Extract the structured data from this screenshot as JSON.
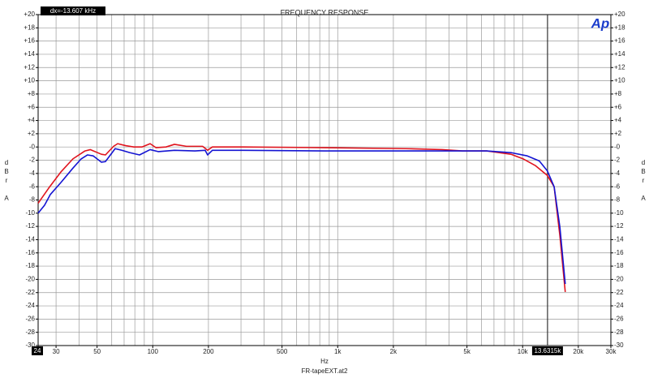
{
  "chart_data": {
    "type": "line",
    "title": "FREQUENCY RESPONSE",
    "readout": "dx=-13.607 kHz",
    "logo": "Ap",
    "xlabel": "Hz",
    "footer": "FR-tapeEXT.at2",
    "ylabel": "dBr A",
    "xscale": "log",
    "grid": true,
    "xlim": [
      24,
      30000
    ],
    "ylim": [
      -30,
      20
    ],
    "xticks": [
      24,
      30,
      50,
      100,
      200,
      500,
      {
        "value": 1000,
        "label": "1k"
      },
      {
        "value": 2000,
        "label": "2k"
      },
      {
        "value": 5000,
        "label": "5k"
      },
      {
        "value": 10000,
        "label": "10k"
      },
      {
        "value": 20000,
        "label": "20k"
      },
      {
        "value": 30000,
        "label": "30k"
      }
    ],
    "xminor_ticks": [
      40,
      60,
      70,
      80,
      90,
      300,
      400,
      600,
      700,
      800,
      900,
      3000,
      4000,
      6000,
      7000,
      8000,
      9000
    ],
    "yticks": [
      {
        "value": 20,
        "label": "+20"
      },
      {
        "value": 18,
        "label": "+18"
      },
      {
        "value": 16,
        "label": "+16"
      },
      {
        "value": 14,
        "label": "+14"
      },
      {
        "value": 12,
        "label": "+12"
      },
      {
        "value": 10,
        "label": "+10"
      },
      {
        "value": 8,
        "label": "+8"
      },
      {
        "value": 6,
        "label": "+6"
      },
      {
        "value": 4,
        "label": "+4"
      },
      {
        "value": 2,
        "label": "+2"
      },
      {
        "value": 0,
        "label": "-0"
      },
      -2,
      -4,
      -6,
      -8,
      -10,
      -12,
      -14,
      -16,
      -18,
      -20,
      -22,
      -24,
      -26,
      -28,
      -30
    ],
    "cursor": {
      "value": 13631.5,
      "label": "13.6315k"
    },
    "series": [
      {
        "color": "#e0141e",
        "x": [
          24,
          27.4,
          31.8,
          37,
          43,
          46,
          52.8,
          55.5,
          61.4,
          64.6,
          71.4,
          79,
          87.4,
          96.8,
          104,
          118,
          131,
          152,
          186,
          198,
          210,
          309,
          848,
          2330,
          3670,
          4720,
          6390,
          8650,
          10080,
          11700,
          13600,
          14800,
          15900,
          17000
        ],
        "values": [
          -8.5,
          -6.2,
          -3.8,
          -1.8,
          -0.6,
          -0.4,
          -1.1,
          -1.2,
          0.1,
          0.5,
          0.2,
          0,
          0,
          0.5,
          -0.1,
          0,
          0.4,
          0.1,
          0.1,
          -0.5,
          0,
          0,
          -0.1,
          -0.25,
          -0.4,
          -0.6,
          -0.6,
          -1.1,
          -1.8,
          -2.8,
          -4.3,
          -6.0,
          -13.4,
          -21.9
        ]
      },
      {
        "color": "#1414d2",
        "x": [
          24,
          26,
          27.9,
          31.8,
          37,
          41,
          44.4,
          47.7,
          52.8,
          55.5,
          62.6,
          68,
          75,
          84.8,
          96.8,
          107,
          131,
          169,
          192,
          198,
          210,
          309,
          848,
          2330,
          4270,
          6390,
          8650,
          10600,
          12300,
          13600,
          14800,
          15900,
          17000
        ],
        "values": [
          -10.0,
          -8.8,
          -7.2,
          -5.4,
          -3.2,
          -1.8,
          -1.2,
          -1.35,
          -2.3,
          -2.2,
          -0.25,
          -0.5,
          -0.85,
          -1.2,
          -0.4,
          -0.7,
          -0.5,
          -0.6,
          -0.5,
          -1.2,
          -0.5,
          -0.5,
          -0.6,
          -0.6,
          -0.6,
          -0.6,
          -0.85,
          -1.35,
          -2.1,
          -3.6,
          -6.0,
          -12.1,
          -20.7
        ]
      }
    ]
  }
}
